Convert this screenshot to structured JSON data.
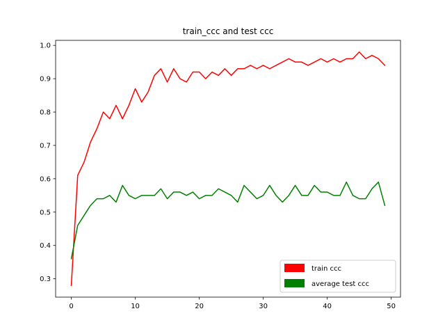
{
  "chart_data": {
    "type": "line",
    "title": "train_ccc and test ccc",
    "xlabel": "",
    "ylabel": "",
    "xlim": [
      -2.45,
      51.45
    ],
    "ylim": [
      0.245,
      1.015
    ],
    "xticks": [
      0,
      10,
      20,
      30,
      40,
      50
    ],
    "yticks": [
      0.3,
      0.4,
      0.5,
      0.6,
      0.7,
      0.8,
      0.9,
      1.0
    ],
    "ytick_labels": [
      "0.3",
      "0.4",
      "0.5",
      "0.6",
      "0.7",
      "0.8",
      "0.9",
      "1.0"
    ],
    "grid": false,
    "legend_position": "lower-right",
    "x": [
      0,
      1,
      2,
      3,
      4,
      5,
      6,
      7,
      8,
      9,
      10,
      11,
      12,
      13,
      14,
      15,
      16,
      17,
      18,
      19,
      20,
      21,
      22,
      23,
      24,
      25,
      26,
      27,
      28,
      29,
      30,
      31,
      32,
      33,
      34,
      35,
      36,
      37,
      38,
      39,
      40,
      41,
      42,
      43,
      44,
      45,
      46,
      47,
      48,
      49
    ],
    "series": [
      {
        "name": "train ccc",
        "color": "#ff0000",
        "values": [
          0.28,
          0.61,
          0.65,
          0.71,
          0.75,
          0.8,
          0.78,
          0.82,
          0.78,
          0.82,
          0.87,
          0.83,
          0.86,
          0.91,
          0.93,
          0.89,
          0.93,
          0.9,
          0.89,
          0.92,
          0.92,
          0.9,
          0.92,
          0.91,
          0.93,
          0.91,
          0.93,
          0.93,
          0.94,
          0.93,
          0.94,
          0.93,
          0.94,
          0.95,
          0.96,
          0.95,
          0.95,
          0.94,
          0.95,
          0.96,
          0.95,
          0.96,
          0.95,
          0.96,
          0.96,
          0.98,
          0.96,
          0.97,
          0.96,
          0.94
        ]
      },
      {
        "name": "average test ccc",
        "color": "#008000",
        "values": [
          0.36,
          0.46,
          0.49,
          0.52,
          0.54,
          0.54,
          0.55,
          0.53,
          0.58,
          0.55,
          0.54,
          0.55,
          0.55,
          0.55,
          0.57,
          0.54,
          0.56,
          0.56,
          0.55,
          0.56,
          0.54,
          0.55,
          0.55,
          0.57,
          0.56,
          0.55,
          0.53,
          0.58,
          0.56,
          0.54,
          0.55,
          0.58,
          0.55,
          0.53,
          0.55,
          0.58,
          0.55,
          0.55,
          0.58,
          0.56,
          0.56,
          0.55,
          0.55,
          0.59,
          0.55,
          0.54,
          0.54,
          0.57,
          0.59,
          0.52
        ]
      }
    ]
  }
}
